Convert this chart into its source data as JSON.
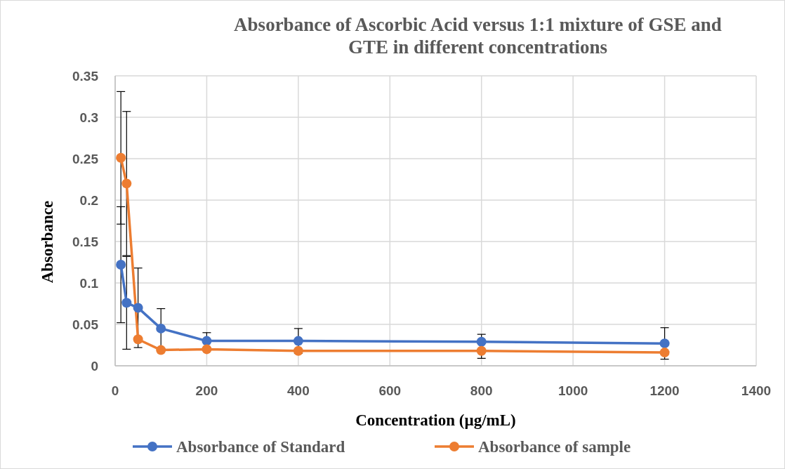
{
  "chart_data": {
    "type": "line",
    "title": "Absorbance of Ascorbic Acid versus 1:1 mixture of GSE and GTE in different concentrations",
    "xlabel": "Concentration (µg/mL)",
    "ylabel": "Absorbance",
    "x": [
      12.5,
      25,
      50,
      100,
      200,
      400,
      800,
      1200
    ],
    "series": [
      {
        "name": "Absorbance of Standard",
        "color": "#4472c4",
        "values": [
          0.122,
          0.076,
          0.07,
          0.045,
          0.03,
          0.03,
          0.029,
          0.027
        ],
        "errors": [
          0.07,
          0.056,
          0.048,
          0.024,
          0.01,
          0.015,
          0.009,
          0.019
        ]
      },
      {
        "name": "Absorbance of sample",
        "color": "#ed7d31",
        "values": [
          0.251,
          0.22,
          0.032,
          0.019,
          0.02,
          0.018,
          0.018,
          0.016
        ],
        "errors": [
          0.08,
          0.087,
          null,
          null,
          null,
          null,
          0.009,
          null
        ]
      }
    ],
    "xlim": [
      0,
      1400
    ],
    "xticks": [
      0,
      200,
      400,
      600,
      800,
      1000,
      1200,
      1400
    ],
    "ylim": [
      0,
      0.35
    ],
    "yticks": [
      0,
      0.05,
      0.1,
      0.15,
      0.2,
      0.25,
      0.3,
      0.35
    ],
    "grid": true,
    "legend": "bottom",
    "marker": "circle",
    "line_style": "solid"
  }
}
